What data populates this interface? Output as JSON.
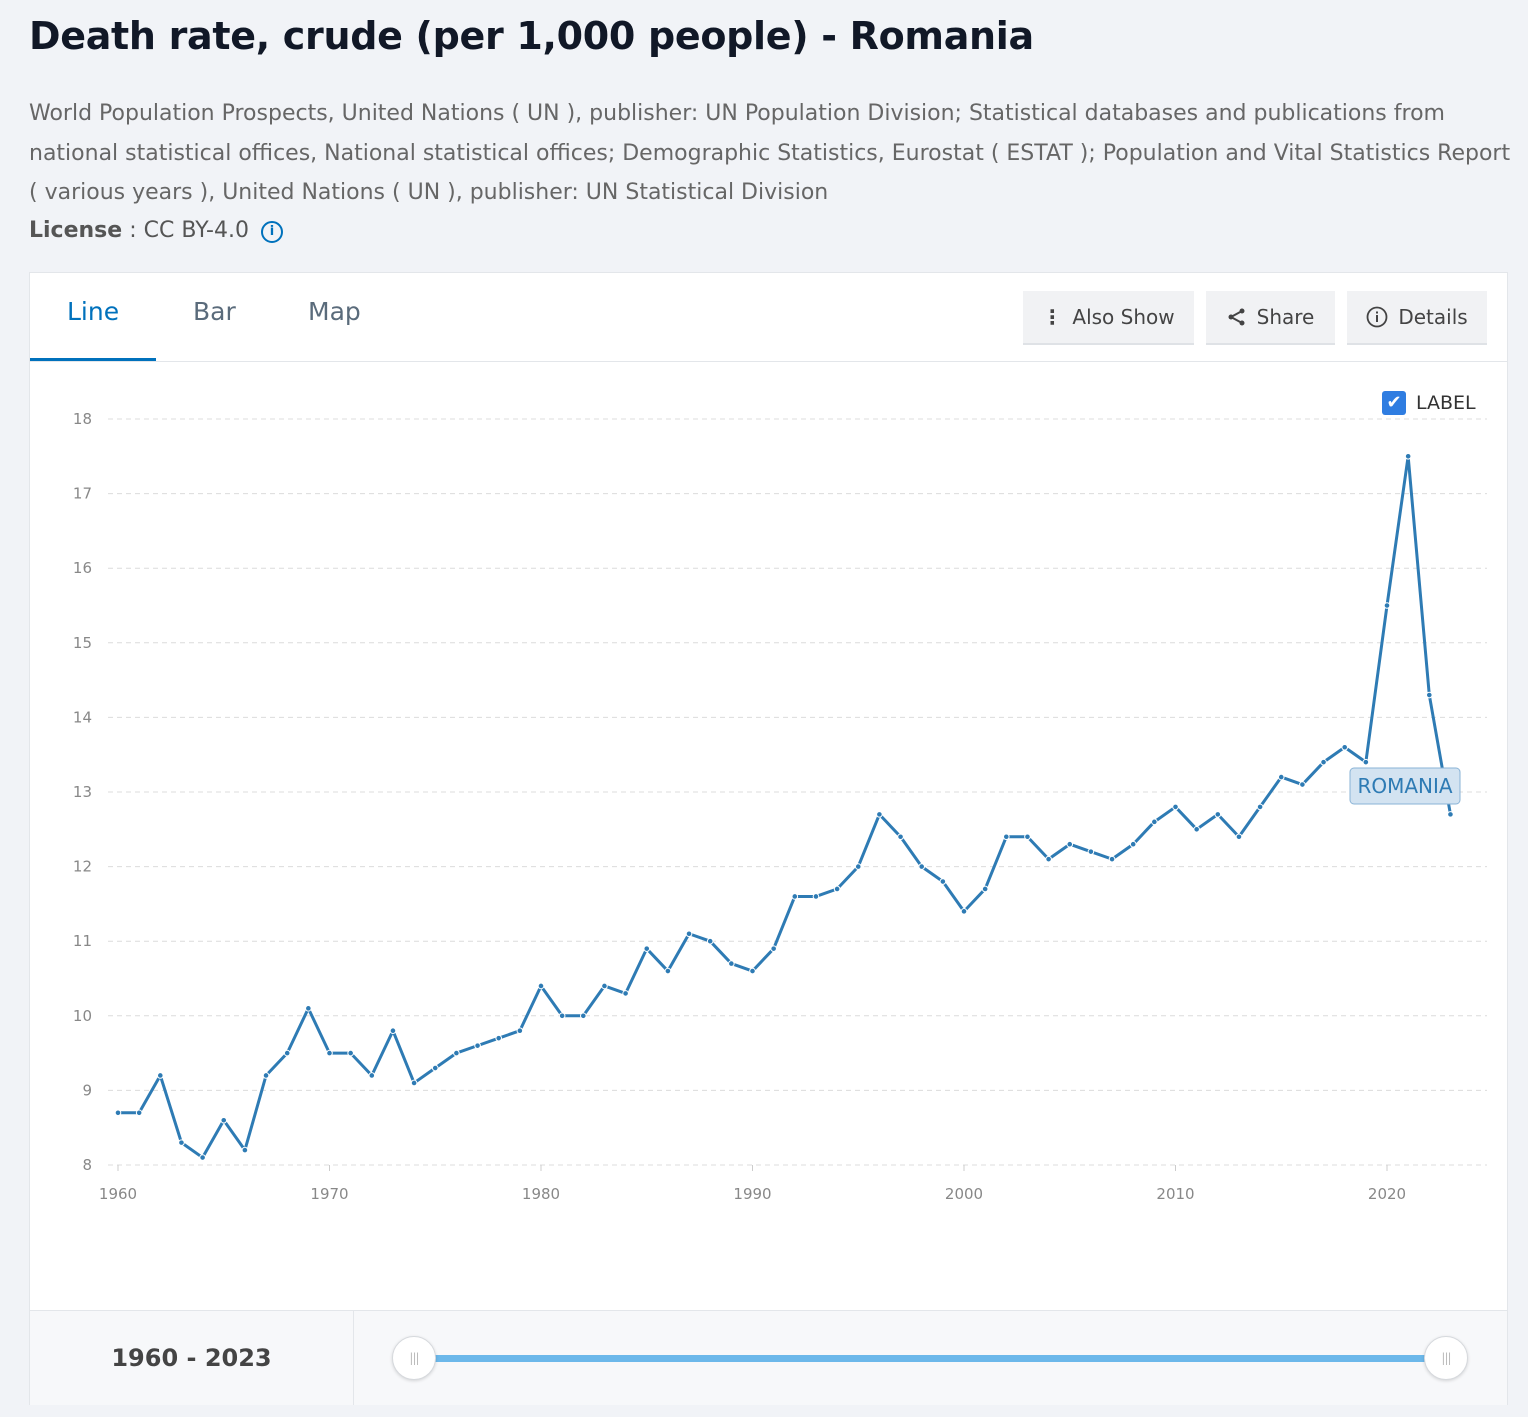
{
  "title": "Death rate, crude (per 1,000 people) - Romania",
  "source": "World Population Prospects, United Nations ( UN ), publisher: UN Population Division; Statistical databases and publications from national statistical offices, National statistical offices; Demographic Statistics, Eurostat ( ESTAT ); Population and Vital Statistics Report ( various years ), United Nations ( UN ), publisher: UN Statistical Division",
  "license": {
    "label": "License",
    "sep": " : ",
    "value": "CC BY-4.0",
    "info_icon": "i"
  },
  "tabs": [
    {
      "label": "Line"
    },
    {
      "label": "Bar"
    },
    {
      "label": "Map"
    }
  ],
  "actions": {
    "also_show": "Also Show",
    "share": "Share",
    "details": "Details"
  },
  "label_toggle": {
    "label": "LABEL",
    "checked": true
  },
  "range": {
    "text": "1960 - 2023",
    "handle_glyph": "|||"
  },
  "chart_data": {
    "type": "line",
    "title": "Death rate, crude (per 1,000 people) - Romania",
    "xlabel": "",
    "ylabel": "",
    "ylim": [
      8,
      18
    ],
    "xlim": [
      1960,
      2023
    ],
    "yticks": [
      8,
      9,
      10,
      11,
      12,
      13,
      14,
      15,
      16,
      17,
      18
    ],
    "xticks": [
      1960,
      1970,
      1980,
      1990,
      2000,
      2010,
      2020
    ],
    "grid": true,
    "color": "#2e7bb4",
    "series": [
      {
        "name": "ROMANIA",
        "x": [
          1960,
          1961,
          1962,
          1963,
          1964,
          1965,
          1966,
          1967,
          1968,
          1969,
          1970,
          1971,
          1972,
          1973,
          1974,
          1975,
          1976,
          1977,
          1978,
          1979,
          1980,
          1981,
          1982,
          1983,
          1984,
          1985,
          1986,
          1987,
          1988,
          1989,
          1990,
          1991,
          1992,
          1993,
          1994,
          1995,
          1996,
          1997,
          1998,
          1999,
          2000,
          2001,
          2002,
          2003,
          2004,
          2005,
          2006,
          2007,
          2008,
          2009,
          2010,
          2011,
          2012,
          2013,
          2014,
          2015,
          2016,
          2017,
          2018,
          2019,
          2020,
          2021,
          2022,
          2023
        ],
        "values": [
          8.7,
          8.7,
          9.2,
          8.3,
          8.1,
          8.6,
          8.2,
          9.2,
          9.5,
          10.1,
          9.5,
          9.5,
          9.2,
          9.8,
          9.1,
          9.3,
          9.5,
          9.6,
          9.7,
          9.8,
          10.4,
          10.0,
          10.0,
          10.4,
          10.3,
          10.9,
          10.6,
          11.1,
          11.0,
          10.7,
          10.6,
          10.9,
          11.6,
          11.6,
          11.7,
          12.0,
          12.7,
          12.4,
          12.0,
          11.8,
          11.4,
          11.7,
          12.4,
          12.4,
          12.1,
          12.3,
          12.2,
          12.1,
          12.3,
          12.6,
          12.8,
          12.5,
          12.7,
          12.4,
          12.8,
          13.2,
          13.1,
          13.4,
          13.6,
          13.4,
          15.5,
          17.5,
          14.3,
          12.7
        ]
      }
    ]
  }
}
